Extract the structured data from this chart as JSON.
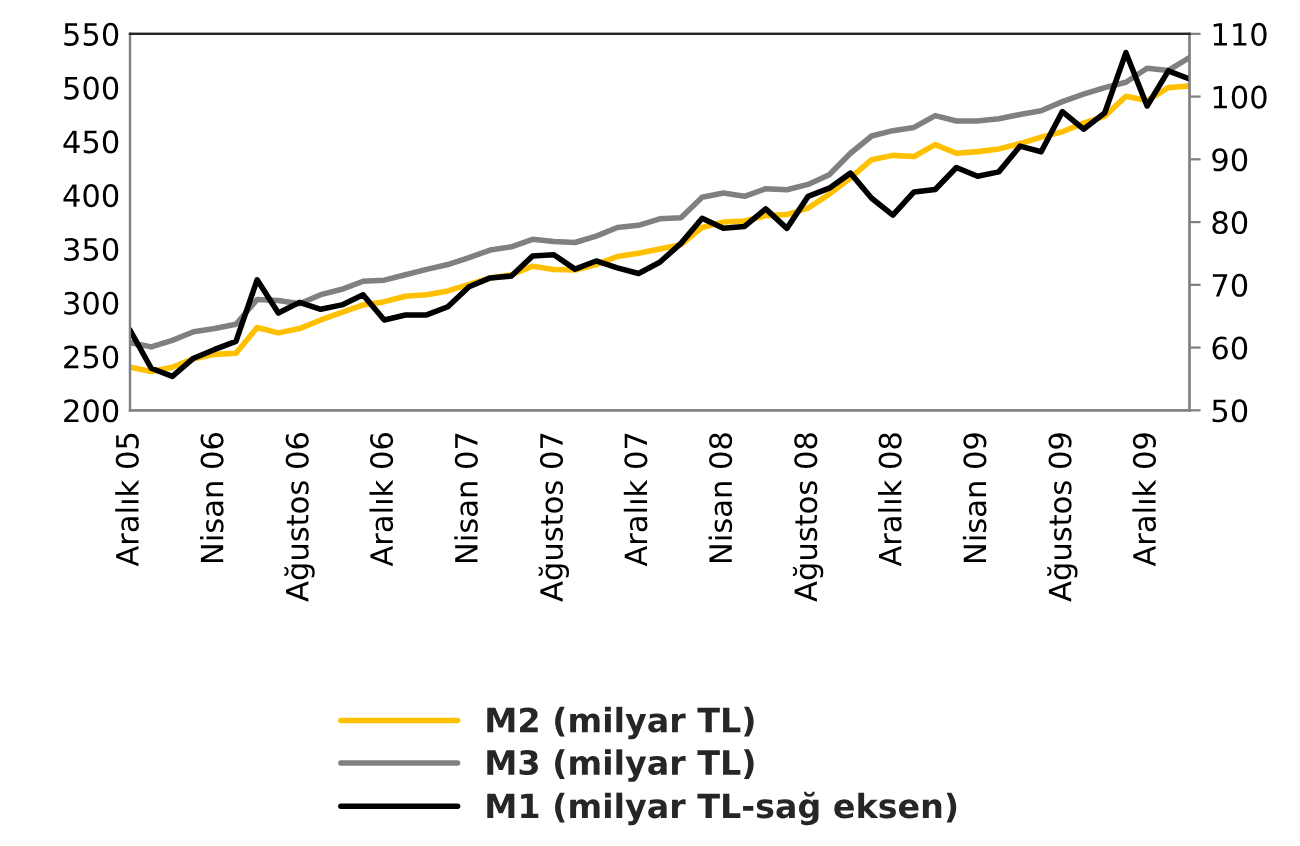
{
  "chart_data": {
    "type": "line",
    "categories": [
      "Aralık 05",
      null,
      null,
      null,
      "Nisan 06",
      null,
      null,
      null,
      "Ağustos 06",
      null,
      null,
      null,
      "Aralık 06",
      null,
      null,
      null,
      "Nisan 07",
      null,
      null,
      null,
      "Ağustos 07",
      null,
      null,
      null,
      "Aralık 07",
      null,
      null,
      null,
      "Nisan 08",
      null,
      null,
      null,
      "Ağustos 08",
      null,
      null,
      null,
      "Aralık 08",
      null,
      null,
      null,
      "Nisan 09",
      null,
      null,
      null,
      "Ağustos 09",
      null,
      null,
      null,
      "Aralık 09",
      null,
      null
    ],
    "series": [
      {
        "name": "M2 (milyar TL)",
        "color": "#ffc000",
        "values": [
          240,
          236,
          240,
          248,
          252,
          253,
          277,
          272,
          276,
          284,
          291,
          298,
          301,
          306,
          307.5,
          311,
          317,
          323,
          326,
          334,
          331,
          330.5,
          335.5,
          343,
          346,
          350,
          354,
          370,
          375,
          376,
          381,
          382,
          388,
          401,
          416,
          433,
          437,
          436,
          447,
          439,
          440.5,
          443,
          448,
          454,
          459,
          467,
          473.5,
          492,
          488,
          500,
          501.5
        ]
      },
      {
        "name": "M3 (milyar TL)",
        "color": "#808080",
        "values": [
          263,
          259,
          265,
          273,
          276,
          280,
          303,
          302,
          299,
          307.5,
          312.5,
          320,
          321,
          326,
          331,
          335.5,
          342,
          349,
          352,
          359,
          357,
          356,
          362,
          370,
          372,
          378,
          379,
          398,
          402,
          399,
          406,
          405,
          410,
          419,
          439,
          455,
          460,
          463,
          474,
          469,
          469,
          471,
          475,
          478.5,
          487,
          494,
          500,
          505,
          518,
          516,
          528
        ]
      },
      {
        "name": "M1 (milyar TL-sağ eksen)",
        "color": "#000000",
        "axis": "y2",
        "values": [
          62.8,
          56.7,
          55.4,
          58.3,
          59.7,
          61,
          70.8,
          65.5,
          67.2,
          66.1,
          66.8,
          68.4,
          64.4,
          65.2,
          65.2,
          66.5,
          69.7,
          71.1,
          71.4,
          74.6,
          74.8,
          72.5,
          73.8,
          72.7,
          71.8,
          73.6,
          76.6,
          80.6,
          79,
          79.3,
          82.1,
          79,
          84.1,
          85.4,
          87.8,
          83.8,
          81.1,
          84.8,
          85.2,
          88.7,
          87.3,
          88,
          92.1,
          91.2,
          97.6,
          94.8,
          97.4,
          107,
          98.5,
          104.1,
          102.8
        ]
      }
    ],
    "ylim": [
      200,
      550
    ],
    "yticks": [
      200,
      250,
      300,
      350,
      400,
      450,
      500,
      550
    ],
    "y2lim": [
      50,
      110
    ],
    "y2ticks": [
      50,
      60,
      70,
      80,
      90,
      100,
      110
    ],
    "legend": "bottom",
    "grid": false,
    "marker": "none",
    "line_style": "solid"
  }
}
